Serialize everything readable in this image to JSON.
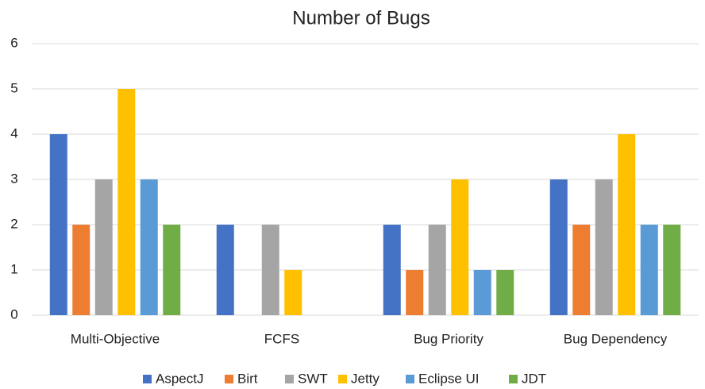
{
  "chart_data": {
    "type": "bar",
    "title": "Number of Bugs",
    "categories": [
      "Multi-Objective",
      "FCFS",
      "Bug Priority",
      "Bug Dependency"
    ],
    "series": [
      {
        "name": "AspectJ",
        "color": "#4472c4",
        "values": [
          4,
          2,
          2,
          3
        ]
      },
      {
        "name": "Birt",
        "color": "#ed7d31",
        "values": [
          2,
          0,
          1,
          2
        ]
      },
      {
        "name": "SWT",
        "color": "#a5a5a5",
        "values": [
          3,
          2,
          2,
          3
        ]
      },
      {
        "name": "Jetty",
        "color": "#ffc000",
        "values": [
          5,
          1,
          3,
          4
        ]
      },
      {
        "name": "Eclipse UI",
        "color": "#5b9bd5",
        "values": [
          3,
          0,
          1,
          2
        ]
      },
      {
        "name": "JDT",
        "color": "#70ad47",
        "values": [
          2,
          0,
          1,
          2
        ]
      }
    ],
    "ylim": [
      0,
      6
    ],
    "yticks": [
      0,
      1,
      2,
      3,
      4,
      5,
      6
    ],
    "grid": true,
    "legend": "bottom"
  }
}
